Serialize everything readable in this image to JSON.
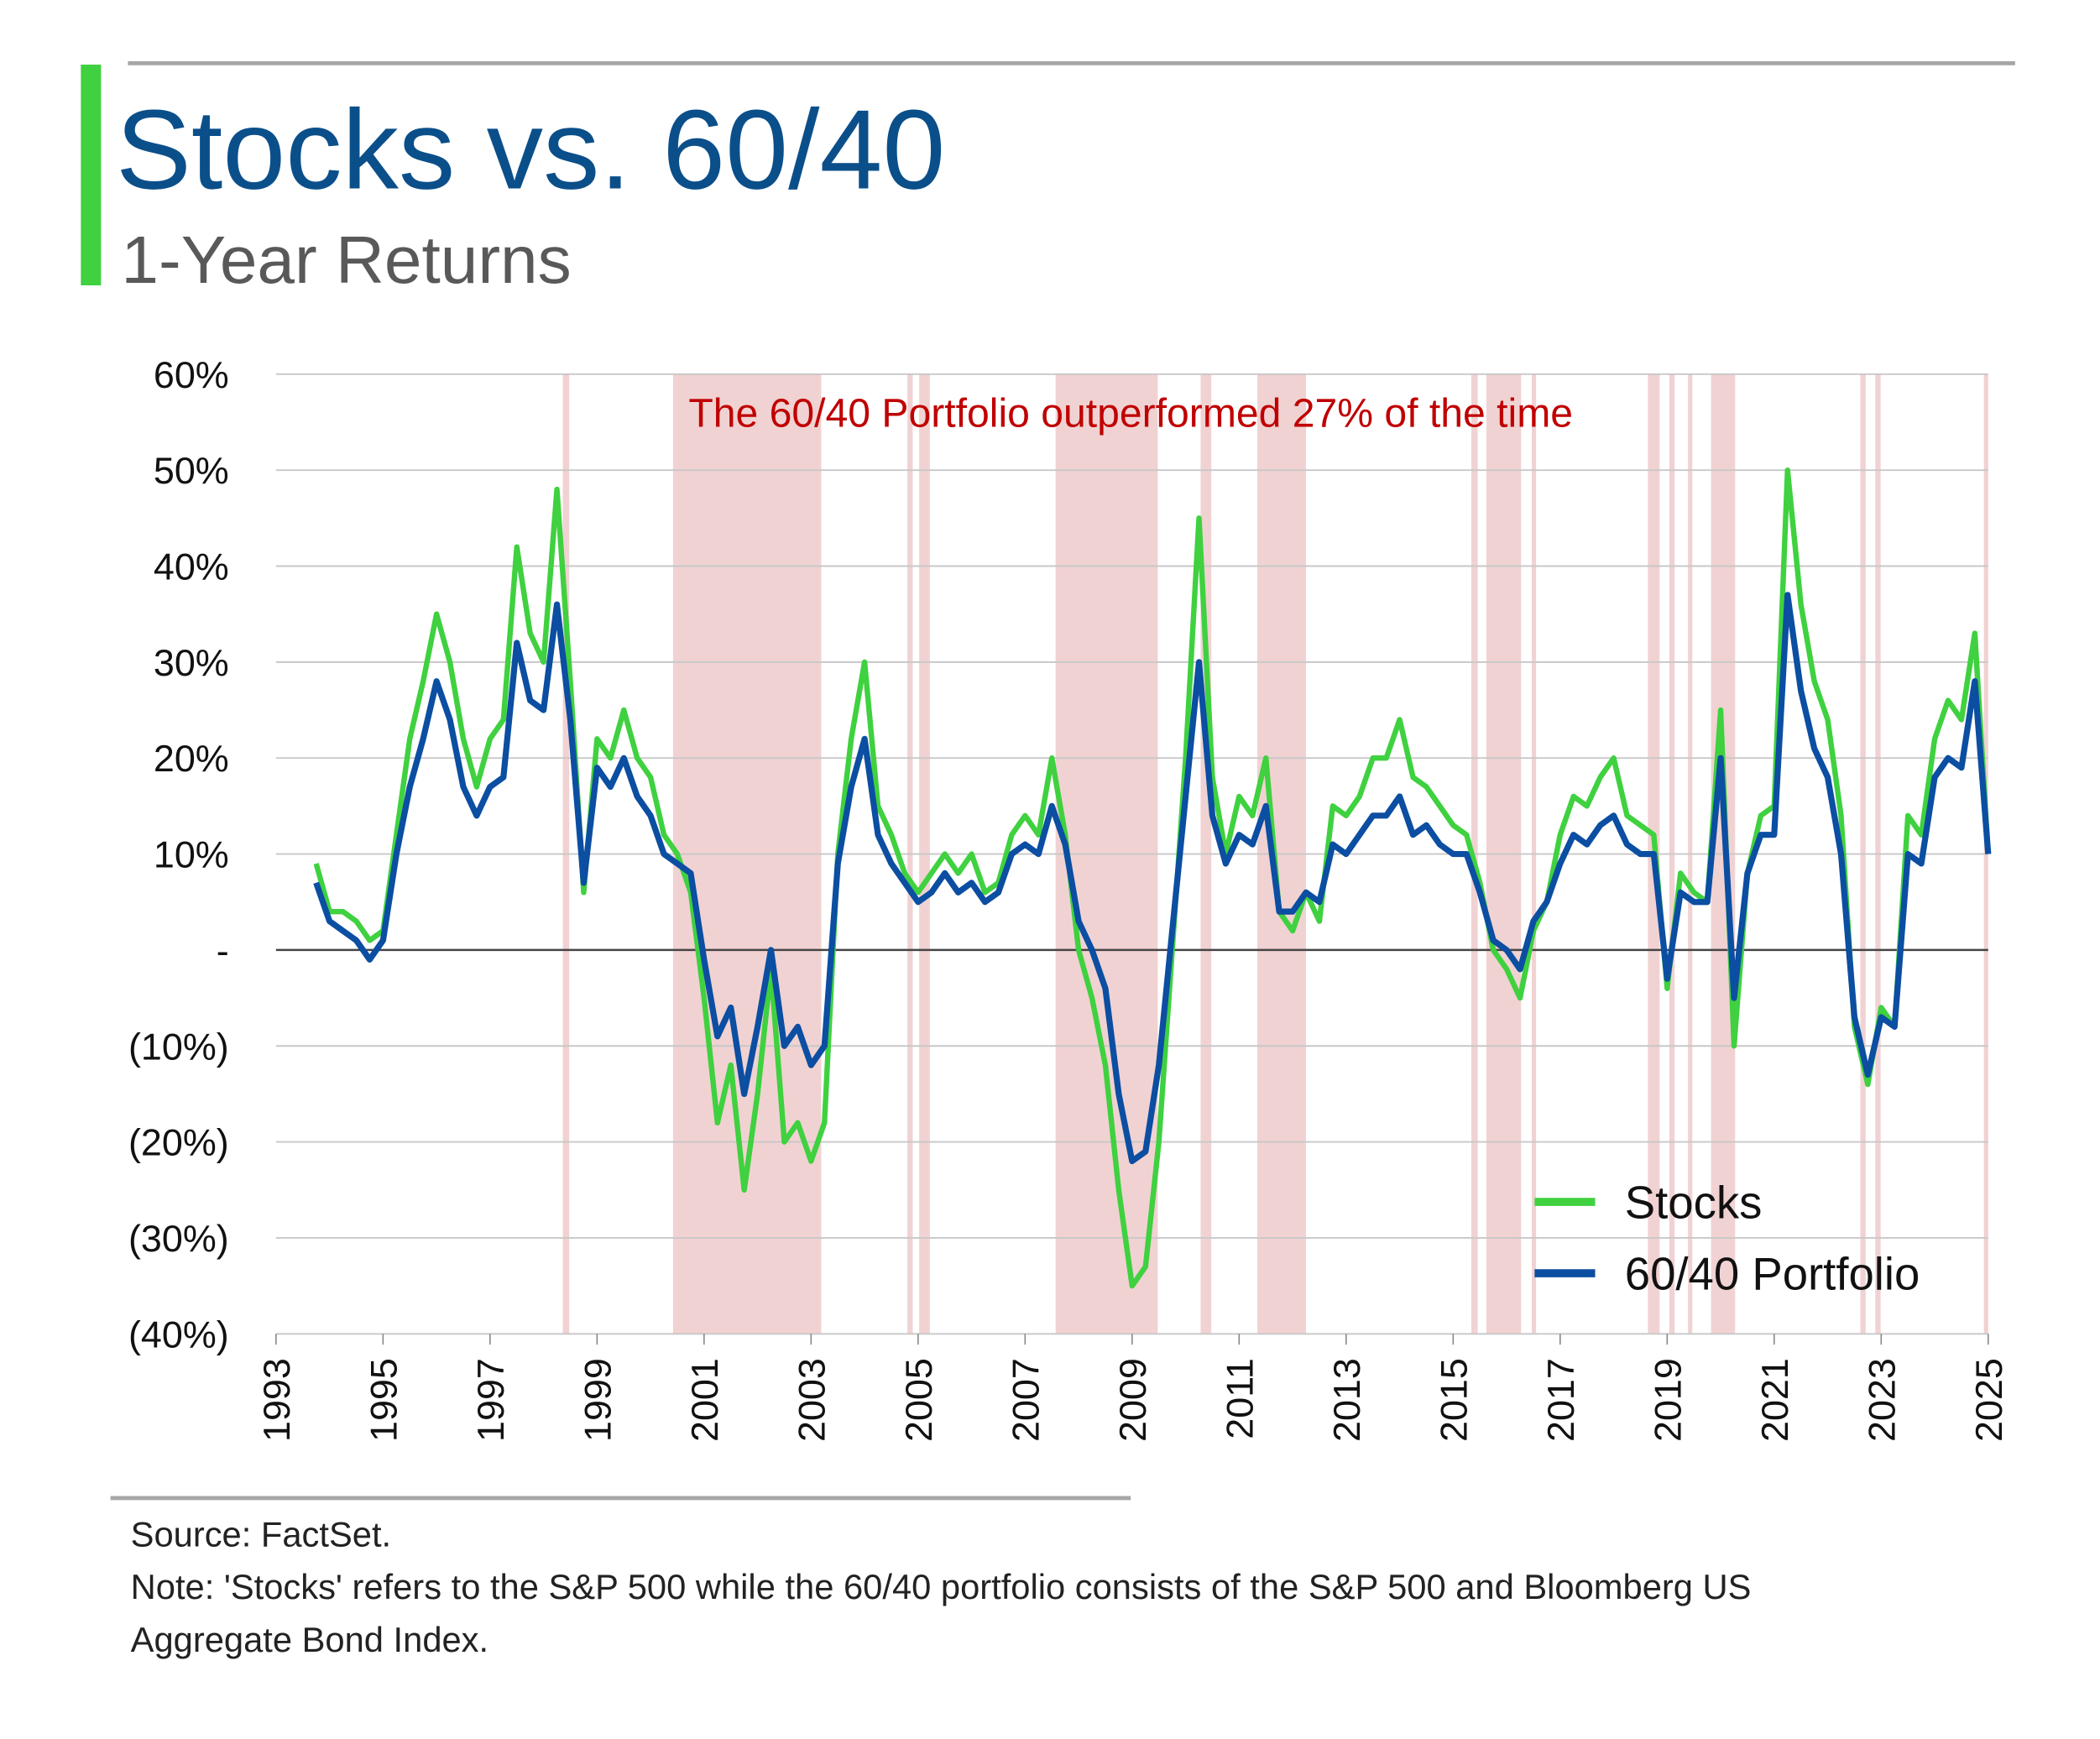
{
  "chart_data": {
    "type": "line",
    "title": "Stocks vs. 60/40",
    "subtitle": "1-Year Returns",
    "annotation": "The 60/40 Portfolio outperformed 27% of the time",
    "source": "Source: FactSet.",
    "note_lines": [
      "Note: 'Stocks' refers to the S&P 500 while the 60/40 portfolio consists of the S&P 500 and Bloomberg US",
      "Aggregate Bond Index."
    ],
    "legend": "lower right",
    "grid": true,
    "xlim": [
      1993,
      2025
    ],
    "xticks": [
      1993,
      1995,
      1997,
      1999,
      2001,
      2003,
      2005,
      2007,
      2009,
      2011,
      2013,
      2015,
      2017,
      2019,
      2021,
      2023,
      2025
    ],
    "ylim": [
      -40,
      60
    ],
    "yticks": [
      {
        "value": -40,
        "label": "(40%)"
      },
      {
        "value": -30,
        "label": "(30%)"
      },
      {
        "value": -20,
        "label": "(20%)"
      },
      {
        "value": -10,
        "label": "(10%)"
      },
      {
        "value": 0,
        "label": "-"
      },
      {
        "value": 10,
        "label": "10%"
      },
      {
        "value": 20,
        "label": "20%"
      },
      {
        "value": 30,
        "label": "30%"
      },
      {
        "value": 40,
        "label": "40%"
      },
      {
        "value": 50,
        "label": "50%"
      },
      {
        "value": 60,
        "label": "60%"
      }
    ],
    "shaded_color": "#e8b4b4",
    "shaded_regions": [
      [
        1998.36,
        1998.48
      ],
      [
        2000.42,
        2003.19
      ],
      [
        2004.8,
        2004.9
      ],
      [
        2005.02,
        2005.22
      ],
      [
        2007.57,
        2009.48
      ],
      [
        2010.28,
        2010.48
      ],
      [
        2011.34,
        2012.25
      ],
      [
        2015.34,
        2015.46
      ],
      [
        2015.62,
        2016.27
      ],
      [
        2016.47,
        2016.55
      ],
      [
        2018.64,
        2018.86
      ],
      [
        2019.04,
        2019.14
      ],
      [
        2019.39,
        2019.47
      ],
      [
        2019.82,
        2020.27
      ],
      [
        2022.61,
        2022.71
      ],
      [
        2022.89,
        2022.99
      ],
      [
        2024.92,
        2025.0
      ]
    ],
    "x": [
      1993.75,
      1994,
      1994.25,
      1994.5,
      1994.75,
      1995,
      1995.25,
      1995.5,
      1995.75,
      1996,
      1996.25,
      1996.5,
      1996.75,
      1997,
      1997.25,
      1997.5,
      1997.75,
      1998,
      1998.25,
      1998.5,
      1998.75,
      1999,
      1999.25,
      1999.5,
      1999.75,
      2000,
      2000.25,
      2000.5,
      2000.75,
      2001,
      2001.25,
      2001.5,
      2001.75,
      2002,
      2002.25,
      2002.5,
      2002.75,
      2003,
      2003.25,
      2003.5,
      2003.75,
      2004,
      2004.25,
      2004.5,
      2004.75,
      2005,
      2005.25,
      2005.5,
      2005.75,
      2006,
      2006.25,
      2006.5,
      2006.75,
      2007,
      2007.25,
      2007.5,
      2007.75,
      2008,
      2008.25,
      2008.5,
      2008.75,
      2009,
      2009.25,
      2009.5,
      2009.75,
      2010,
      2010.25,
      2010.5,
      2010.75,
      2011,
      2011.25,
      2011.5,
      2011.75,
      2012,
      2012.25,
      2012.5,
      2012.75,
      2013,
      2013.25,
      2013.5,
      2013.75,
      2014,
      2014.25,
      2014.5,
      2014.75,
      2015,
      2015.25,
      2015.5,
      2015.75,
      2016,
      2016.25,
      2016.5,
      2016.75,
      2017,
      2017.25,
      2017.5,
      2017.75,
      2018,
      2018.25,
      2018.5,
      2018.75,
      2019,
      2019.25,
      2019.5,
      2019.75,
      2020,
      2020.25,
      2020.5,
      2020.75,
      2021,
      2021.25,
      2021.5,
      2021.75,
      2022,
      2022.25,
      2022.5,
      2022.75,
      2023,
      2023.25,
      2023.5,
      2023.75,
      2024,
      2024.25,
      2024.5,
      2024.75,
      2025
    ],
    "series": [
      {
        "name": "Stocks",
        "color": "#3fd13f",
        "values": [
          9,
          4,
          4,
          3,
          1,
          2,
          12,
          22,
          28,
          35,
          30,
          22,
          17,
          22,
          24,
          42,
          33,
          30,
          48,
          28,
          6,
          22,
          20,
          25,
          20,
          18,
          12,
          10,
          6,
          -5,
          -18,
          -12,
          -25,
          -15,
          -2,
          -20,
          -18,
          -22,
          -18,
          10,
          22,
          30,
          15,
          12,
          8,
          6,
          8,
          10,
          8,
          10,
          6,
          7,
          12,
          14,
          12,
          20,
          12,
          0,
          -5,
          -12,
          -25,
          -35,
          -33,
          -20,
          0,
          20,
          45,
          18,
          10,
          16,
          14,
          20,
          4,
          2,
          6,
          3,
          15,
          14,
          16,
          20,
          20,
          24,
          18,
          17,
          15,
          13,
          12,
          7,
          0,
          -2,
          -5,
          2,
          5,
          12,
          16,
          15,
          18,
          20,
          14,
          13,
          12,
          -4,
          8,
          6,
          5,
          25,
          -10,
          8,
          14,
          15,
          50,
          36,
          28,
          24,
          14,
          -8,
          -14,
          -6,
          -8,
          14,
          12,
          22,
          26,
          24,
          33,
          10
        ]
      },
      {
        "name": "60/40 Portfolio",
        "color": "#0b4ea2",
        "values": [
          7,
          3,
          2,
          1,
          -1,
          1,
          10,
          17,
          22,
          28,
          24,
          17,
          14,
          17,
          18,
          32,
          26,
          25,
          36,
          24,
          7,
          19,
          17,
          20,
          16,
          14,
          10,
          9,
          8,
          -1,
          -9,
          -6,
          -15,
          -8,
          0,
          -10,
          -8,
          -12,
          -10,
          9,
          17,
          22,
          12,
          9,
          7,
          5,
          6,
          8,
          6,
          7,
          5,
          6,
          10,
          11,
          10,
          15,
          11,
          3,
          0,
          -4,
          -15,
          -22,
          -21,
          -12,
          2,
          16,
          30,
          14,
          9,
          12,
          11,
          15,
          4,
          4,
          6,
          5,
          11,
          10,
          12,
          14,
          14,
          16,
          12,
          13,
          11,
          10,
          10,
          6,
          1,
          0,
          -2,
          3,
          5,
          9,
          12,
          11,
          13,
          14,
          11,
          10,
          10,
          -3,
          6,
          5,
          5,
          20,
          -5,
          8,
          12,
          12,
          37,
          27,
          21,
          18,
          10,
          -7,
          -13,
          -7,
          -8,
          10,
          9,
          18,
          20,
          19,
          28,
          10
        ]
      }
    ]
  }
}
